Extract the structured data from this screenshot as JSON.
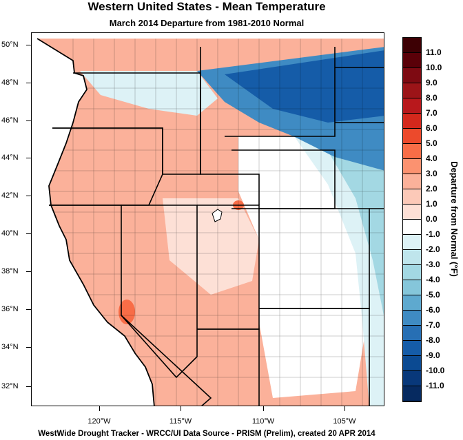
{
  "title": "Western United States - Mean Temperature",
  "subtitle": "March 2014  Departure from 1981-2010 Normal",
  "footer": "WestWide Drought Tracker - WRCC/UI  Data Source - PRISM (Prelim), created 20 APR 2014",
  "colorbar": {
    "title": "Departure from Normal (°F)",
    "labels": [
      "11.0",
      "10.0",
      "9.0",
      "8.0",
      "7.0",
      "6.0",
      "5.0",
      "4.0",
      "3.0",
      "2.0",
      "1.0",
      "0.0",
      "-1.0",
      "-2.0",
      "-3.0",
      "-4.0",
      "-5.0",
      "-6.0",
      "-7.0",
      "-8.0",
      "-9.0",
      "-10.0",
      "-11.0"
    ],
    "colors": [
      "#5a0008",
      "#7e0a12",
      "#9c1418",
      "#b8181c",
      "#d4281c",
      "#ec4a2c",
      "#f86d47",
      "#fb9270",
      "#fbb19a",
      "#fcc9b8",
      "#fde0d6",
      "#ffffff",
      "#ddf2f6",
      "#bfe5ec",
      "#a3d8e3",
      "#85c6da",
      "#5ea9cf",
      "#3f8bc3",
      "#276fb4",
      "#155ca8",
      "#0b4a92",
      "#08387a",
      "#062a60"
    ]
  },
  "axes": {
    "lat_labels": [
      "50°N",
      "48°N",
      "46°N",
      "44°N",
      "42°N",
      "40°N",
      "38°N",
      "36°N",
      "34°N",
      "32°N"
    ],
    "lon_labels": [
      "120°W",
      "115°W",
      "110°W",
      "105°W"
    ]
  },
  "palette": {
    "warm_light": "#fde0d6",
    "warm": "#fbb19a",
    "warm_strong": "#f86d47",
    "cool_light": "#ddf2f6",
    "cool": "#a3d8e3",
    "cool_strong": "#3f8bc3",
    "cool_deep": "#155ca8",
    "neutral": "#ffffff"
  }
}
